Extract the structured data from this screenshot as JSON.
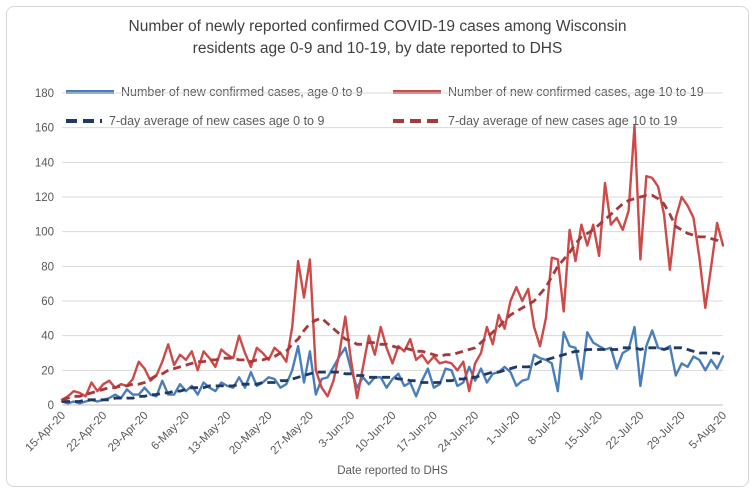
{
  "chart_title_line1": "Number of newly reported confirmed COVID-19 cases among Wisconsin",
  "chart_title_line2": "residents age 0-9 and 10-19, by date reported to DHS",
  "colors": {
    "solid_age_0_9": "#4a7ebb",
    "solid_age_10_19": "#cd4a49",
    "avg_age_0_9": "#1f3864",
    "avg_age_10_19": "#a43a3c",
    "gridline": "#d9d9d9",
    "axis_line": "#bfbfbf",
    "title_text": "#3f3f3f",
    "axis_text": "#595959"
  },
  "chart_data": {
    "type": "line",
    "title": "Number of newly reported confirmed COVID-19 cases among Wisconsin residents age 0-9 and 10-19, by date reported to DHS",
    "xlabel": "Date reported to DHS",
    "ylabel": "",
    "ylim": [
      0,
      180
    ],
    "y_ticks": [
      0,
      20,
      40,
      60,
      80,
      100,
      120,
      140,
      160,
      180
    ],
    "grid": true,
    "legend_position": "top",
    "x_start": "15-Apr-20",
    "x_end": "5-Aug-20",
    "x_frequency": "daily",
    "n_points": 113,
    "x_tick_labels": [
      "15-Apr-20",
      "22-Apr-20",
      "29-Apr-20",
      "6-May-20",
      "13-May-20",
      "20-May-20",
      "27-May-20",
      "3-Jun-20",
      "10-Jun-20",
      "17-Jun-20",
      "24-Jun-20",
      "1-Jul-20",
      "8-Jul-20",
      "15-Jul-20",
      "22-Jul-20",
      "29-Jul-20",
      "5-Aug-20"
    ],
    "series": [
      {
        "name": "Number of new confirmed cases, age 0 to 9",
        "style": "solid",
        "color": "#4a7ebb",
        "values": [
          2,
          1,
          2,
          1,
          2,
          3,
          2,
          3,
          4,
          6,
          4,
          9,
          6,
          6,
          10,
          6,
          5,
          14,
          6,
          6,
          12,
          8,
          11,
          6,
          13,
          10,
          8,
          13,
          11,
          10,
          16,
          10,
          19,
          11,
          13,
          16,
          15,
          10,
          12,
          20,
          34,
          13,
          31,
          6,
          15,
          16,
          22,
          28,
          33,
          20,
          10,
          16,
          12,
          16,
          16,
          10,
          15,
          18,
          11,
          13,
          5,
          14,
          21,
          10,
          12,
          21,
          20,
          11,
          13,
          22,
          14,
          21,
          13,
          18,
          19,
          22,
          19,
          11,
          14,
          15,
          29,
          27,
          26,
          24,
          8,
          42,
          34,
          33,
          15,
          42,
          36,
          34,
          32,
          33,
          21,
          30,
          32,
          45,
          11,
          34,
          43,
          33,
          32,
          34,
          17,
          24,
          22,
          28,
          26,
          20,
          26,
          21,
          28
        ]
      },
      {
        "name": "Number of new confirmed cases, age 10 to 19",
        "style": "solid",
        "color": "#cd4a49",
        "values": [
          3,
          5,
          8,
          7,
          5,
          13,
          8,
          12,
          14,
          10,
          12,
          11,
          15,
          25,
          21,
          14,
          17,
          25,
          35,
          23,
          29,
          26,
          31,
          20,
          31,
          27,
          22,
          32,
          29,
          27,
          40,
          30,
          22,
          33,
          30,
          26,
          33,
          30,
          25,
          45,
          83,
          62,
          84,
          20,
          10,
          5,
          14,
          30,
          51,
          25,
          4,
          22,
          40,
          29,
          45,
          33,
          24,
          34,
          31,
          38,
          26,
          29,
          24,
          28,
          24,
          25,
          24,
          20,
          25,
          8,
          24,
          30,
          45,
          35,
          52,
          44,
          60,
          68,
          60,
          67,
          45,
          34,
          50,
          85,
          84,
          54,
          101,
          83,
          104,
          92,
          104,
          86,
          128,
          104,
          108,
          101,
          112,
          161,
          84,
          132,
          131,
          126,
          110,
          78,
          108,
          120,
          115,
          108,
          85,
          56,
          80,
          105,
          92
        ]
      },
      {
        "name": "7-day average of new cases age 0 to 9",
        "style": "dashed",
        "color": "#1f3864",
        "values": [
          2,
          2,
          2,
          2,
          3,
          3,
          3,
          3,
          3,
          4,
          4,
          4,
          4,
          5,
          5,
          6,
          6,
          7,
          7,
          8,
          8,
          9,
          10,
          10,
          10,
          11,
          11,
          11,
          11,
          11,
          12,
          12,
          12,
          12,
          13,
          13,
          13,
          14,
          14,
          15,
          16,
          17,
          18,
          19,
          19,
          19,
          19,
          19,
          18,
          18,
          17,
          17,
          16,
          16,
          16,
          16,
          16,
          15,
          15,
          14,
          14,
          13,
          13,
          13,
          13,
          14,
          14,
          15,
          15,
          16,
          16,
          17,
          18,
          19,
          19,
          20,
          21,
          22,
          22,
          22,
          23,
          25,
          26,
          27,
          28,
          29,
          30,
          31,
          31,
          32,
          32,
          32,
          32,
          32,
          32,
          33,
          33,
          33,
          32,
          33,
          33,
          33,
          32,
          33,
          33,
          33,
          32,
          31,
          30,
          30,
          30,
          30,
          29
        ]
      },
      {
        "name": "7-day average of new cases age 10 to 19",
        "style": "dashed",
        "color": "#a43a3c",
        "values": [
          3,
          4,
          5,
          5,
          6,
          7,
          8,
          9,
          10,
          10,
          11,
          11,
          12,
          12,
          13,
          15,
          17,
          18,
          20,
          21,
          22,
          23,
          24,
          25,
          25,
          26,
          26,
          27,
          27,
          27,
          26,
          26,
          25,
          26,
          26,
          27,
          28,
          30,
          31,
          35,
          38,
          43,
          47,
          49,
          50,
          47,
          44,
          41,
          38,
          37,
          35,
          35,
          36,
          36,
          35,
          35,
          34,
          33,
          33,
          32,
          31,
          31,
          30,
          29,
          28,
          29,
          29,
          30,
          31,
          32,
          33,
          36,
          39,
          42,
          45,
          49,
          52,
          54,
          56,
          58,
          60,
          64,
          68,
          74,
          80,
          84,
          88,
          93,
          97,
          99,
          101,
          104,
          107,
          110,
          113,
          116,
          118,
          119,
          120,
          121,
          121,
          119,
          116,
          110,
          103,
          101,
          99,
          98,
          97,
          97,
          96,
          95,
          93
        ]
      }
    ]
  }
}
